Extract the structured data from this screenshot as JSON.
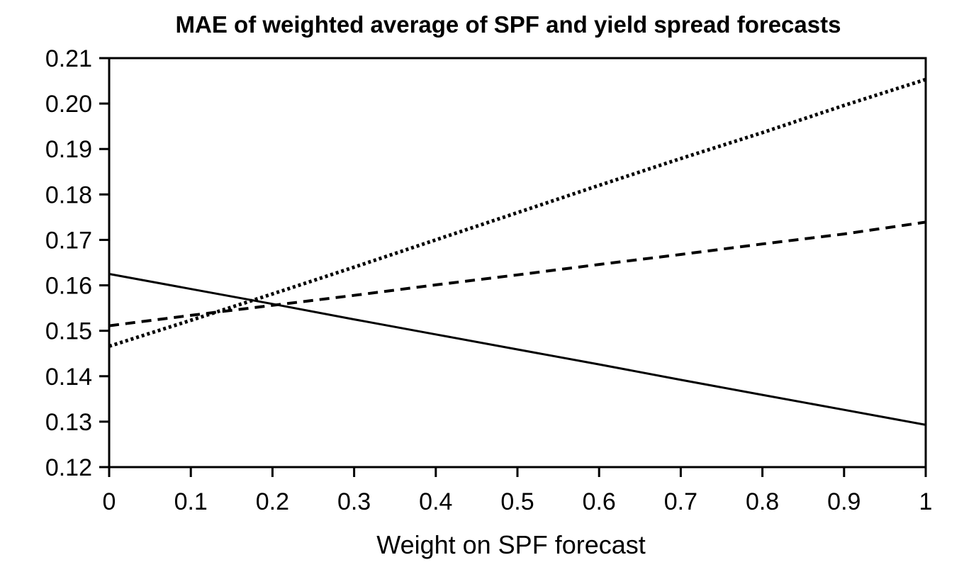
{
  "chart_data": {
    "type": "line",
    "title": "MAE of weighted average of SPF and yield spread forecasts",
    "xlabel": "Weight on SPF forecast",
    "ylabel": "",
    "xlim": [
      0,
      1
    ],
    "ylim": [
      0.12,
      0.21
    ],
    "x_ticks": [
      "0",
      "0.1",
      "0.2",
      "0.3",
      "0.4",
      "0.5",
      "0.6",
      "0.7",
      "0.8",
      "0.9",
      "1"
    ],
    "y_ticks": [
      "0.12",
      "0.13",
      "0.14",
      "0.15",
      "0.16",
      "0.17",
      "0.18",
      "0.19",
      "0.20",
      "0.21"
    ],
    "grid": false,
    "legend": "none",
    "series": [
      {
        "style": "solid",
        "color": "#000000",
        "x": [
          0,
          0.1,
          0.2,
          0.3,
          0.4,
          0.5,
          0.6,
          0.7,
          0.8,
          0.9,
          1
        ],
        "values": [
          0.1625,
          0.1592,
          0.1559,
          0.1525,
          0.1492,
          0.1459,
          0.1426,
          0.1392,
          0.1359,
          0.1326,
          0.1293
        ]
      },
      {
        "style": "dashed",
        "color": "#000000",
        "x": [
          0,
          0.1,
          0.2,
          0.3,
          0.4,
          0.5,
          0.6,
          0.7,
          0.8,
          0.9,
          1
        ],
        "values": [
          0.1511,
          0.1534,
          0.1556,
          0.1578,
          0.1601,
          0.1623,
          0.1646,
          0.1668,
          0.1691,
          0.1713,
          0.1739
        ]
      },
      {
        "style": "dotted",
        "color": "#000000",
        "x": [
          0,
          0.1,
          0.2,
          0.3,
          0.4,
          0.5,
          0.6,
          0.7,
          0.8,
          0.9,
          1
        ],
        "values": [
          0.1466,
          0.1523,
          0.1581,
          0.164,
          0.17,
          0.176,
          0.182,
          0.1879,
          0.1936,
          0.1996,
          0.2053
        ]
      }
    ]
  }
}
